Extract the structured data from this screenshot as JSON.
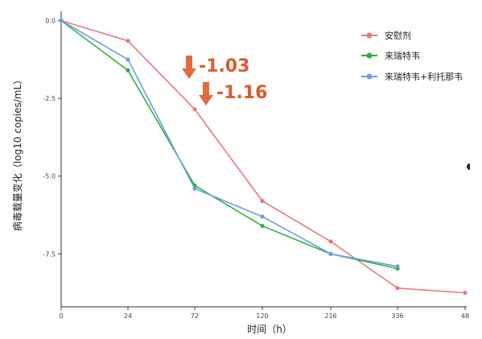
{
  "chart_data": {
    "type": "line",
    "title": "",
    "xlabel": "时间（h）",
    "ylabel": "病毒载量变化（log10 copies/mL）",
    "categories": [
      "0",
      "24",
      "72",
      "120",
      "216",
      "336",
      "48"
    ],
    "ylim": [
      -9.2,
      0.3
    ],
    "yticks": [
      0.0,
      -2.5,
      -5.0,
      -7.5
    ],
    "ytick_labels": [
      "0.0",
      "-2.5",
      "-5.0",
      "-7.5"
    ],
    "grid": false,
    "legend_position": "top-right",
    "series": [
      {
        "name": "安慰剂",
        "color": "#e8787a",
        "values": [
          0.0,
          -0.65,
          -2.85,
          -5.8,
          -7.1,
          -8.6,
          -8.75
        ]
      },
      {
        "name": "来瑞特韦",
        "color": "#28b43c",
        "values": [
          0.0,
          -1.6,
          -5.3,
          -6.6,
          -7.5,
          -7.97,
          null
        ]
      },
      {
        "name": "来瑞特韦+利托那韦",
        "color": "#6f9be8",
        "values": [
          0.0,
          -1.25,
          -5.4,
          -6.3,
          -7.5,
          -7.9,
          null
        ]
      }
    ],
    "annotations": [
      {
        "text": "-1.03",
        "color": "#e0592a"
      },
      {
        "text": "-1.16",
        "color": "#e0592a"
      }
    ]
  }
}
